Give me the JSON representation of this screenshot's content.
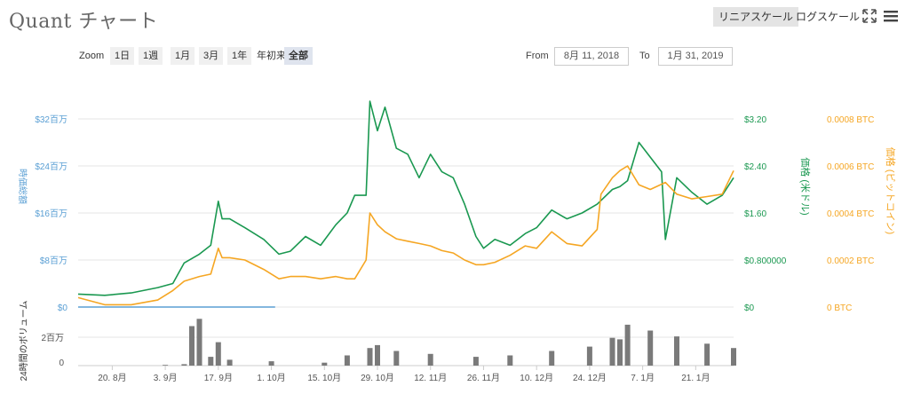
{
  "header": {
    "title": "Quant チャート",
    "scale_linear": "リニアスケール",
    "scale_log": "ログスケール"
  },
  "toolbar": {
    "zoom_label": "Zoom",
    "zoom_buttons": [
      "1日",
      "1週",
      "1月",
      "3月",
      "1年",
      "年初来",
      "全部"
    ],
    "active_zoom": "全部",
    "from_label": "From",
    "from_value": "8月 11, 2018",
    "to_label": "To",
    "to_value": "1月 31, 2019"
  },
  "colors": {
    "volume": "#5a9fd4",
    "usd": "#1a9850",
    "btc": "#f5a623",
    "volume_bars": "#7a7a7a",
    "grid": "#e6e6e6"
  },
  "chart_data": {
    "type": "line",
    "x_ticks": [
      "20. 8月",
      "3. 9月",
      "17. 9月",
      "1. 10月",
      "15. 10月",
      "29. 10月",
      "12. 11月",
      "26. 11月",
      "10. 12月",
      "24. 12月",
      "7. 1月",
      "21. 1月"
    ],
    "axes": {
      "volume": {
        "label": "時価総額",
        "ticks": [
          "$0",
          "$8百万",
          "$16百万",
          "$24百万",
          "$32百万"
        ],
        "ylim": [
          0,
          32000000
        ]
      },
      "usd": {
        "label": "価格 (米ドル)",
        "ticks": [
          "$0",
          "$0.800000",
          "$1.60",
          "$2.40",
          "$3.20"
        ],
        "ylim": [
          0,
          3.2
        ]
      },
      "btc": {
        "label": "価格 (ビットコイン)",
        "ticks": [
          "0 BTC",
          "0.0002 BTC",
          "0.0004 BTC",
          "0.0006 BTC",
          "0.0008 BTC"
        ],
        "ylim": [
          0,
          0.0008
        ]
      },
      "vol24": {
        "label": "24時間のボリューム",
        "ticks": [
          "0",
          "2百万"
        ]
      }
    },
    "series": [
      {
        "name": "価格 (米ドル)",
        "axis": "usd",
        "x": [
          "8月 11",
          "8月 18",
          "8月 25",
          "9月 1",
          "9月 5",
          "9月 8",
          "9月 12",
          "9月 15",
          "9月 17",
          "9月 18",
          "9月 20",
          "9月 24",
          "9月 29",
          "10月 3",
          "10月 6",
          "10月 10",
          "10月 14",
          "10月 18",
          "10月 21",
          "10月 23",
          "10月 26",
          "10月 27",
          "10月 29",
          "10月 31",
          "11月 3",
          "11月 6",
          "11月 9",
          "11月 12",
          "11月 15",
          "11月 18",
          "11月 21",
          "11月 24",
          "11月 26",
          "11月 29",
          "12月 3",
          "12月 7",
          "12月 10",
          "12月 14",
          "12月 18",
          "12月 22",
          "12月 26",
          "12月 30",
          "1月 1",
          "1月 3",
          "1月 6",
          "1月 9",
          "1月 12",
          "1月 13",
          "1月 16",
          "1月 20",
          "1月 24",
          "1月 28",
          "1月 31"
        ],
        "values": [
          0.22,
          0.2,
          0.24,
          0.33,
          0.4,
          0.75,
          0.9,
          1.05,
          1.8,
          1.5,
          1.5,
          1.35,
          1.15,
          0.9,
          0.95,
          1.2,
          1.05,
          1.4,
          1.6,
          1.9,
          1.9,
          3.5,
          3.0,
          3.4,
          2.7,
          2.6,
          2.2,
          2.6,
          2.3,
          2.2,
          1.75,
          1.2,
          1.0,
          1.15,
          1.05,
          1.25,
          1.35,
          1.65,
          1.5,
          1.6,
          1.75,
          2.0,
          2.05,
          2.15,
          2.8,
          2.55,
          2.3,
          1.15,
          2.2,
          1.95,
          1.75,
          1.9,
          2.2
        ]
      },
      {
        "name": "価格 (ビットコイン)",
        "axis": "btc",
        "x": [
          "8月 11",
          "8月 18",
          "8月 25",
          "9月 1",
          "9月 5",
          "9月 8",
          "9月 12",
          "9月 15",
          "9月 17",
          "9月 18",
          "9月 20",
          "9月 24",
          "9月 29",
          "10月 3",
          "10月 6",
          "10月 10",
          "10月 14",
          "10月 18",
          "10月 21",
          "10月 23",
          "10月 26",
          "10月 27",
          "10月 29",
          "10月 31",
          "11月 3",
          "11月 6",
          "11月 9",
          "11月 12",
          "11月 15",
          "11月 18",
          "11月 21",
          "11月 24",
          "11月 26",
          "11月 29",
          "12月 3",
          "12月 7",
          "12月 10",
          "12月 14",
          "12月 18",
          "12月 22",
          "12月 26",
          "12月 27",
          "12月 30",
          "1月 1",
          "1月 3",
          "1月 6",
          "1月 9",
          "1月 13",
          "1月 16",
          "1月 20",
          "1月 24",
          "1月 28",
          "1月 31"
        ],
        "values": [
          4e-05,
          1e-05,
          1e-05,
          3e-05,
          7e-05,
          0.00011,
          0.00013,
          0.00014,
          0.00025,
          0.00021,
          0.00021,
          0.0002,
          0.00016,
          0.00012,
          0.00013,
          0.00013,
          0.00012,
          0.00013,
          0.00012,
          0.00012,
          0.0002,
          0.0004,
          0.00035,
          0.00032,
          0.00029,
          0.00028,
          0.00027,
          0.00026,
          0.00024,
          0.00023,
          0.0002,
          0.00018,
          0.00018,
          0.00019,
          0.00022,
          0.00026,
          0.00025,
          0.00032,
          0.00027,
          0.00026,
          0.00033,
          0.00048,
          0.00055,
          0.00058,
          0.0006,
          0.00052,
          0.0005,
          0.00053,
          0.00048,
          0.00046,
          0.00047,
          0.00048,
          0.00058
        ]
      },
      {
        "name": "時価総額",
        "axis": "volume",
        "x": [
          "8月 11",
          "9月 17",
          "9月 29",
          "10月 1",
          "10月 2"
        ],
        "values": [
          0,
          0,
          0,
          0,
          0
        ]
      },
      {
        "name": "24時間のボリューム",
        "axis": "vol24",
        "type": "bar",
        "x": [
          "8月 11",
          "8月 25",
          "9月 3",
          "9月 8",
          "9月 10",
          "9月 12",
          "9月 15",
          "9月 17",
          "9月 20",
          "10月 1",
          "10月 15",
          "10月 21",
          "10月 27",
          "10月 29",
          "11月 3",
          "11月 12",
          "11月 24",
          "12月 3",
          "12月 14",
          "12月 24",
          "12月 30",
          "1月 1",
          "1月 3",
          "1月 9",
          "1月 16",
          "1月 24",
          "1月 31"
        ],
        "values": [
          0,
          0,
          0.05,
          0.1,
          2.7,
          3.2,
          0.6,
          1.6,
          0.4,
          0.3,
          0.2,
          0.7,
          1.2,
          1.4,
          1.0,
          0.8,
          0.6,
          0.7,
          1.0,
          1.3,
          1.9,
          1.8,
          2.8,
          2.4,
          2.0,
          1.5,
          1.2
        ]
      }
    ]
  }
}
